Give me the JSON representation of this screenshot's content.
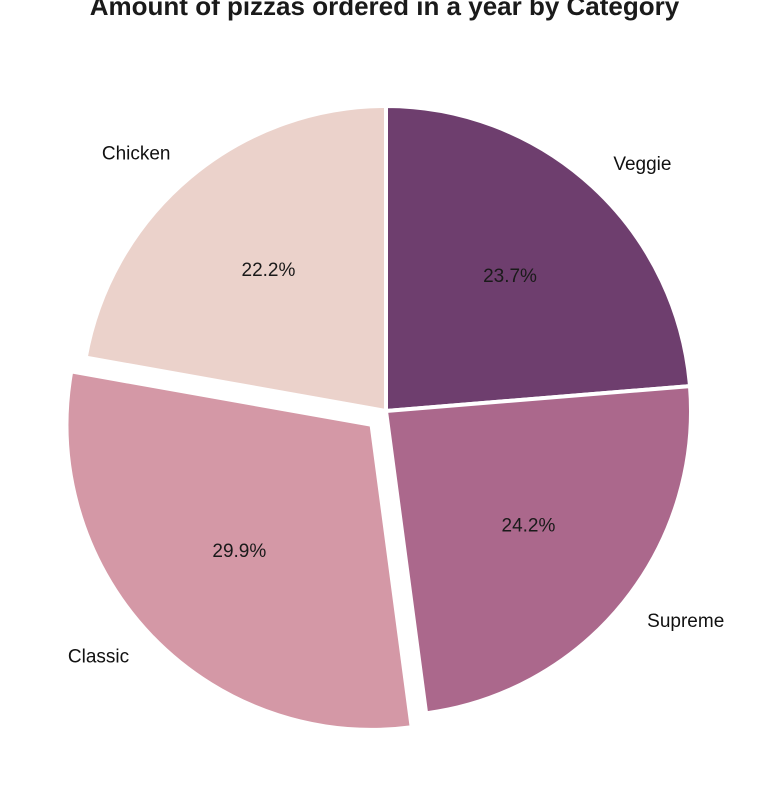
{
  "chart_data": {
    "type": "pie",
    "title": "Amount of pizzas ordered in a year by Category",
    "slices": [
      {
        "label": "Veggie",
        "value": 23.7,
        "pct_label": "23.7%",
        "color": "#6e3e6e",
        "exploded": false
      },
      {
        "label": "Supreme",
        "value": 24.2,
        "pct_label": "24.2%",
        "color": "#ab688c",
        "exploded": false
      },
      {
        "label": "Classic",
        "value": 29.9,
        "pct_label": "29.9%",
        "color": "#d498a6",
        "exploded": true
      },
      {
        "label": "Chicken",
        "value": 22.2,
        "pct_label": "22.2%",
        "color": "#ebd2cb",
        "exploded": false
      }
    ],
    "start_angle_deg": 90,
    "direction": "clockwise"
  }
}
